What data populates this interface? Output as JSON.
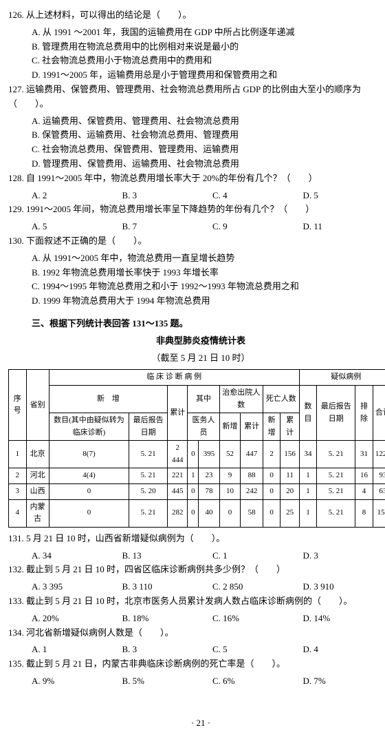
{
  "q126": {
    "stem": "126. 从上述材料，可以得出的结论是（　　）。",
    "a": "A. 从 1991 ～2001 年，我国的运输费用在 GDP 中所占比例逐年递减",
    "b": "B. 管理费用在物流总费用中的比例相对来说是最小的",
    "c": "C. 社会物流总费用小于物流总费用中的费用和",
    "d": "D. 1991～2005 年，运输费用总是小于管理费用和保管费用之和"
  },
  "q127": {
    "stem": "127. 运输费用、保管费用、管理费用、社会物流总费用所占 GDP 的比例由大至小的顺序为（　　）。",
    "a": "A. 运输费用、保管费用、管理费用、社会物流总费用",
    "b": "B. 保管费用、运输费用、社会物流总费用、管理费用",
    "c": "C. 社会物流总费用、保管费用、管理费用、运输费用",
    "d": "D. 管理费用、保管费用、运输费用、社会物流总费用"
  },
  "q128": {
    "stem": "128. 自 1991～2005 年中，物流总费用增长率大于 20%的年份有几个？（　　）",
    "a": "A. 2",
    "b": "B. 3",
    "c": "C. 4",
    "d": "D. 5"
  },
  "q129": {
    "stem": "129. 1991～2005 年间，物流总费用增长率呈下降趋势的年份有几个？（　　）",
    "a": "A. 5",
    "b": "B. 7",
    "c": "C. 9",
    "d": "D. 11"
  },
  "q130": {
    "stem": "130. 下面叙述不正确的是（　　）。",
    "a": "A. 从 1991～2005 年中，物流总费用一直呈增长趋势",
    "b": "B. 1992 年物流总费用增长率快于 1993 年增长率",
    "c": "C. 1994～1995 年物流总费用之和小于 1992～1993 年物流总费用之和",
    "d": "D. 1999 年物流总费用大于 1994 年物流总费用"
  },
  "section": "三、根据下列统计表回答 131～135 题。",
  "table_title": "非典型肺炎疫情统计表",
  "table_sub": "（截至 5 月 21 日 10 时）",
  "th": {
    "seq": "序号",
    "prov": "省别",
    "clinical": "临 床 诊 断 病 例",
    "suspect": "疑似病例",
    "new": "新　增",
    "cum": "累计",
    "qz": "其中",
    "cy": "治愈出院人数",
    "death": "死亡人数",
    "num": "数目",
    "date": "最后报告日期",
    "excl": "排除",
    "total": "合计",
    "col1": "数目(其中由疑似转为临床诊断)",
    "med": "医务人员",
    "nz": "新增",
    "lj": "累计"
  },
  "rows": [
    [
      "1",
      "北京",
      "8(7)",
      "5. 21",
      "2 444",
      "0",
      "395",
      "52",
      "447",
      "2",
      "156",
      "34",
      "5. 21",
      "31",
      "1221"
    ],
    [
      "2",
      "河北",
      "4(4)",
      "5. 21",
      "221",
      "1",
      "23",
      "9",
      "88",
      "0",
      "11",
      "1",
      "5. 21",
      "16",
      "93"
    ],
    [
      "3",
      "山西",
      "0",
      "5. 20",
      "445",
      "0",
      "78",
      "10",
      "242",
      "0",
      "20",
      "1",
      "5. 21",
      "4",
      "63"
    ],
    [
      "4",
      "内蒙古",
      "0",
      "5. 21",
      "282",
      "0",
      "40",
      "0",
      "58",
      "0",
      "25",
      "1",
      "5. 21",
      "8",
      "152"
    ]
  ],
  "q131": {
    "stem": "131. 5 月 21 日 10 时，山西省新增疑似病例为（　　）。",
    "a": "A. 34",
    "b": "B. 13",
    "c": "C. 1",
    "d": "D. 3"
  },
  "q132": {
    "stem": "132. 截止到 5 月 21 日 10 时，四省区临床诊断病例共多少例？（　　）",
    "a": "A. 3 395",
    "b": "B. 3 110",
    "c": "C. 2 850",
    "d": "D. 3 910"
  },
  "q133": {
    "stem": "133. 截止到 5 月 21 日 10 时，北京市医务人员累计发病人数占临床诊断病例的（　　）。",
    "a": "A. 20%",
    "b": "B. 18%",
    "c": "C. 16%",
    "d": "D. 14%"
  },
  "q134": {
    "stem": "134. 河北省新增疑似病例人数是（　　）。",
    "a": "A. 1",
    "b": "B. 3",
    "c": "C. 5",
    "d": "D. 4"
  },
  "q135": {
    "stem": "135. 截止到 5 月 21 日，内蒙古非典临床诊断病例的死亡率是（　　）。",
    "a": "A. 9%",
    "b": "B. 5%",
    "c": "C. 6%",
    "d": "D. 7%"
  },
  "page": "· 21 ·"
}
